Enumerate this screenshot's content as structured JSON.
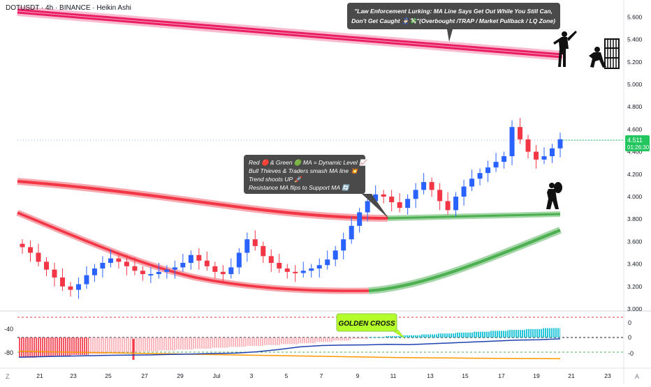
{
  "header": {
    "title": "DOTUSDT · 4h · BINANCE · Heikin Ashi"
  },
  "price_axis": {
    "labels": [
      "5.600",
      "5.400",
      "5.200",
      "5.000",
      "4.800",
      "4.600",
      "4.400",
      "4.200",
      "4.000",
      "3.800",
      "3.600",
      "3.400",
      "3.200",
      "3.000"
    ],
    "last_price": "4.511",
    "countdown": "01:26:30"
  },
  "osc_axis": {
    "left_labels": [
      "-40",
      "-80"
    ],
    "right_labels": [
      "0",
      "0",
      "-0"
    ]
  },
  "time_axis": {
    "labels": [
      "21",
      "23",
      "25",
      "27",
      "29",
      "Jul",
      "3",
      "5",
      "7",
      "9",
      "11",
      "13",
      "15",
      "17",
      "19",
      "21",
      "23"
    ],
    "corner_left": "Z",
    "corner_right": "A"
  },
  "annotations": {
    "top_box_line1": "\"Law Enforcement Lurking: MA Line Says Get Out While You Still Can,",
    "top_box_line2": "Don't Get Caught 👮🏻‍♂️💸\"(Overbought /TRAP / Market Pullback / LQ Zone)",
    "mid_box_line1": "Red 🔴 & Green 🟢 MA = Dynamic Level 📈",
    "mid_box_line2": "Bull Thieves & Traders smash MA line 💥",
    "mid_box_line3": "Trend shoots UP 🚀",
    "mid_box_line4": "Resistance MA flips to Support MA 🔄",
    "golden_cross": "GOLDEN CROSS"
  },
  "colors": {
    "bull_candle": "#2962ff",
    "bear_candle": "#f23645",
    "ma_top": "#e91e63",
    "ma_red": "#f23645",
    "ma_green": "#4caf50",
    "osc_cyan": "#00bcd4",
    "osc_red": "#f23645",
    "osc_orange": "#ff9800",
    "osc_blue": "#1e40af",
    "golden_cross_bg": "#b4ff2a",
    "callout_bg": "#4a4a4a"
  },
  "chart_data": [
    {
      "type": "candlestick",
      "symbol": "DOTUSDT",
      "interval": "4h",
      "exchange": "BINANCE",
      "style": "Heikin Ashi",
      "ylim": [
        3.0,
        5.7
      ],
      "x_ticks": [
        "21",
        "23",
        "25",
        "27",
        "29",
        "Jul",
        "3",
        "5",
        "7",
        "9",
        "11",
        "13",
        "15",
        "17",
        "19",
        "21",
        "23"
      ],
      "close_series": [
        3.55,
        3.5,
        3.42,
        3.35,
        3.28,
        3.2,
        3.17,
        3.22,
        3.3,
        3.36,
        3.41,
        3.45,
        3.42,
        3.38,
        3.34,
        3.31,
        3.31,
        3.33,
        3.35,
        3.37,
        3.41,
        3.48,
        3.43,
        3.38,
        3.33,
        3.31,
        3.37,
        3.5,
        3.62,
        3.56,
        3.47,
        3.41,
        3.36,
        3.33,
        3.32,
        3.34,
        3.36,
        3.39,
        3.44,
        3.52,
        3.62,
        3.74,
        3.86,
        3.96,
        4.02,
        4.0,
        3.95,
        3.9,
        3.98,
        4.06,
        4.13,
        4.06,
        3.96,
        3.88,
        4.0,
        4.09,
        4.16,
        4.21,
        4.26,
        4.31,
        4.36,
        4.62,
        4.51,
        4.4,
        4.33,
        4.36,
        4.43,
        4.511
      ],
      "moving_averages": [
        {
          "name": "top_ma",
          "values": [
            5.63,
            5.25
          ]
        },
        {
          "name": "mid_ma",
          "values": [
            4.15,
            4.06,
            3.98,
            3.91,
            3.85,
            3.81,
            3.8,
            3.8
          ]
        },
        {
          "name": "mid_ma_support",
          "values": [
            3.81,
            3.83
          ]
        },
        {
          "name": "low_ma",
          "values": [
            3.8,
            3.64,
            3.48,
            3.35,
            3.26,
            3.2,
            3.17,
            3.18,
            3.28,
            3.44,
            3.62
          ]
        }
      ],
      "last_price": 4.511
    },
    {
      "type": "area",
      "name": "oscillator",
      "y_labels_left": [
        "-40",
        "-80"
      ],
      "y_labels_right": [
        "0",
        "0",
        "-0"
      ],
      "histogram": [
        -90,
        -86,
        -82,
        -78,
        -74,
        -70,
        -66,
        -62,
        -58,
        -54,
        -50,
        -46,
        -42,
        -38,
        -34,
        -30,
        -26,
        -20,
        -14,
        -6,
        2,
        6,
        10,
        14,
        18,
        22,
        26,
        30,
        34,
        38,
        42
      ],
      "blue_line": [
        -88,
        -86,
        -84,
        -82,
        -80,
        -79,
        -78,
        -76,
        -74,
        -72,
        -70,
        -64,
        -54,
        -42,
        -36,
        -34,
        -33,
        -31,
        -32,
        -28,
        -24,
        -20,
        -16,
        -12,
        -10,
        -6
      ],
      "orange_line": [
        -62,
        -66,
        -70,
        -74,
        -78,
        -82,
        -86,
        -90,
        -92,
        -94,
        -95
      ]
    }
  ]
}
